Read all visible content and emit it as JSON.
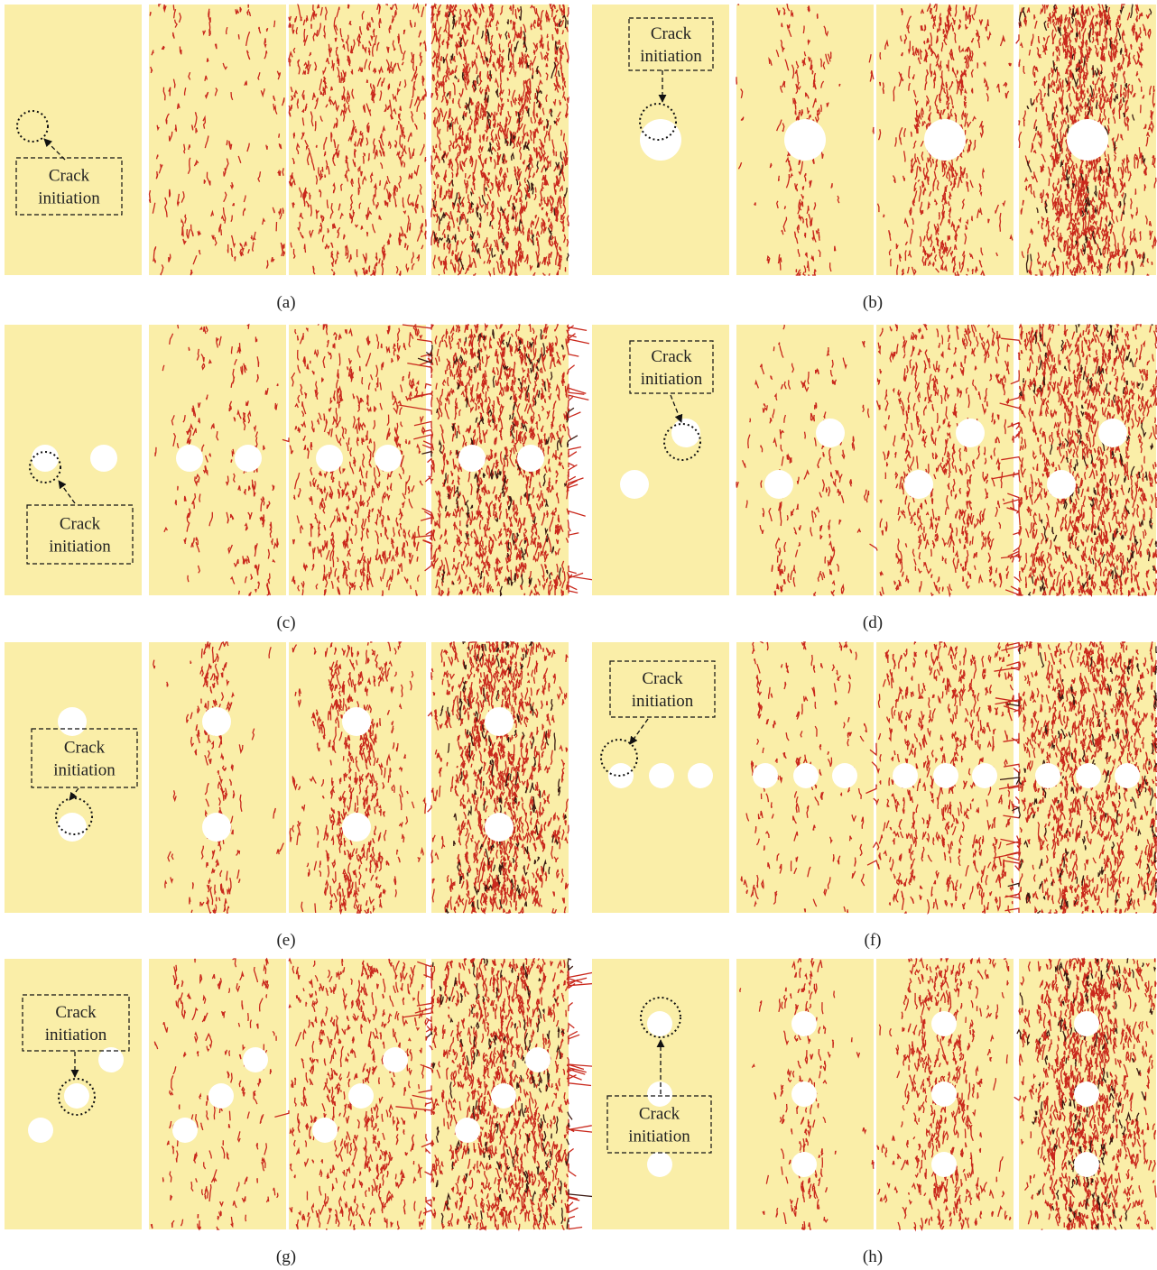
{
  "figure": {
    "panels": [
      {
        "caption": "(a)",
        "annotation": [
          "Crack",
          "initiation"
        ]
      },
      {
        "caption": "(b)",
        "annotation": [
          "Crack",
          "initiation"
        ]
      },
      {
        "caption": "(c)",
        "annotation": [
          "Crack",
          "initiation"
        ]
      },
      {
        "caption": "(d)",
        "annotation": [
          "Crack",
          "initiation"
        ]
      },
      {
        "caption": "(e)",
        "annotation": [
          "Crack",
          "initiation"
        ]
      },
      {
        "caption": "(f)",
        "annotation": [
          "Crack",
          "initiation"
        ]
      },
      {
        "caption": "(g)",
        "annotation": [
          "Crack",
          "initiation"
        ]
      },
      {
        "caption": "(h)",
        "annotation": [
          "Crack",
          "initiation"
        ]
      }
    ]
  }
}
